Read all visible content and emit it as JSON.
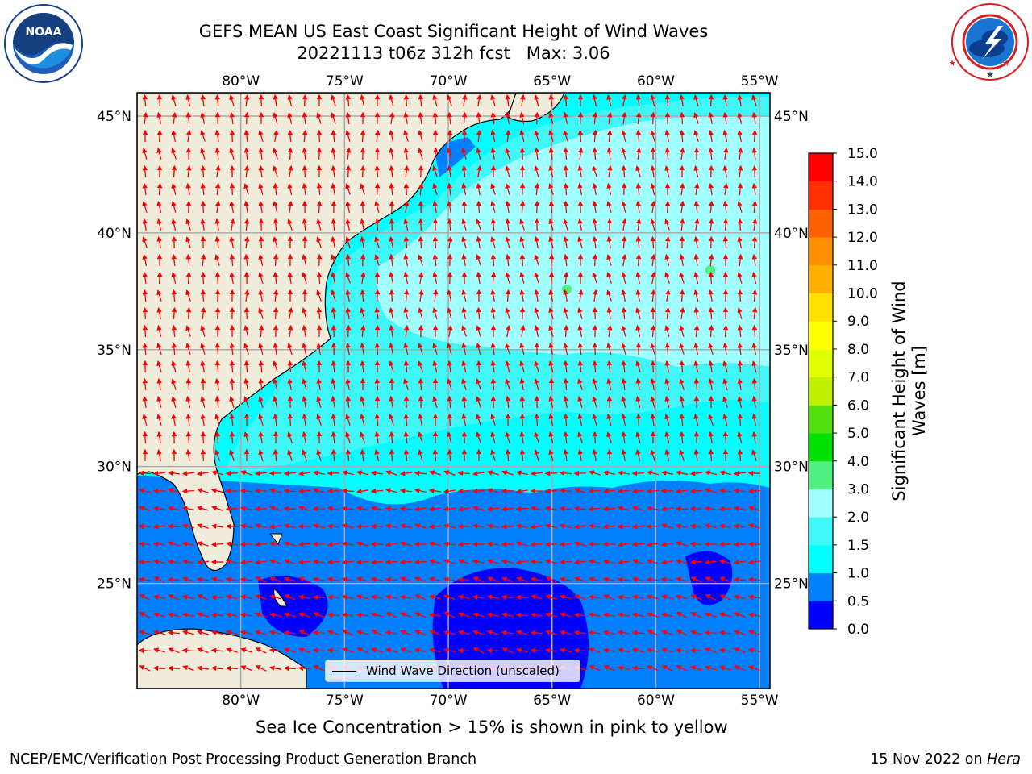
{
  "header": {
    "title_line1": "GEFS MEAN US East Coast Significant Height of Wind Waves",
    "title_line2": "20221113 t06z 312h fcst   Max: 3.06"
  },
  "logos": {
    "left": "noaa-logo",
    "left_text": "NOAA",
    "left_ring_text": "NATIONAL OCEANIC AND ATMOSPHERIC ADMINISTRATION · U.S. DEPARTMENT OF COMMERCE",
    "right": "nws-logo",
    "right_ring_text": "NATIONAL WEATHER SERVICE"
  },
  "map": {
    "lon_labels": [
      "80°W",
      "75°W",
      "70°W",
      "65°W",
      "60°W",
      "55°W"
    ],
    "lat_labels": [
      "45°N",
      "40°N",
      "35°N",
      "30°N",
      "25°N"
    ],
    "lon_values": [
      -80,
      -75,
      -70,
      -65,
      -60,
      -55
    ],
    "lat_values": [
      45,
      40,
      35,
      30,
      25
    ],
    "extent": {
      "lon_min": -85,
      "lon_max": -54.5,
      "lat_min": 20.5,
      "lat_max": 46
    },
    "grid": true,
    "land_color": "#efecdc",
    "vector_color": "#ff0000",
    "legend_label": "Wind Wave Direction (unscaled)"
  },
  "colorbar": {
    "label": "Significant Height of Wind Waves [m]",
    "label_line1": "Significant Height of Wind",
    "label_line2": "Waves [m]",
    "ticks": [
      "15.0",
      "14.0",
      "13.0",
      "12.0",
      "11.0",
      "10.0",
      "9.0",
      "8.0",
      "7.0",
      "6.0",
      "5.0",
      "4.0",
      "3.0",
      "2.0",
      "1.5",
      "1.0",
      "0.5",
      "0.0"
    ],
    "bins": [
      {
        "from": 0.0,
        "to": 0.5,
        "color": "#0000ff"
      },
      {
        "from": 0.5,
        "to": 1.0,
        "color": "#0080ff"
      },
      {
        "from": 1.0,
        "to": 1.5,
        "color": "#00ffff"
      },
      {
        "from": 1.5,
        "to": 2.0,
        "color": "#40f7f7"
      },
      {
        "from": 2.0,
        "to": 3.0,
        "color": "#a0ffff"
      },
      {
        "from": 3.0,
        "to": 4.0,
        "color": "#50f080"
      },
      {
        "from": 4.0,
        "to": 5.0,
        "color": "#00e000"
      },
      {
        "from": 5.0,
        "to": 6.0,
        "color": "#50e010"
      },
      {
        "from": 6.0,
        "to": 7.0,
        "color": "#c0f000"
      },
      {
        "from": 7.0,
        "to": 8.0,
        "color": "#e0ff00"
      },
      {
        "from": 8.0,
        "to": 9.0,
        "color": "#ffff00"
      },
      {
        "from": 9.0,
        "to": 10.0,
        "color": "#ffe000"
      },
      {
        "from": 10.0,
        "to": 11.0,
        "color": "#ffb000"
      },
      {
        "from": 11.0,
        "to": 12.0,
        "color": "#ff9000"
      },
      {
        "from": 12.0,
        "to": 13.0,
        "color": "#ff6000"
      },
      {
        "from": 13.0,
        "to": 14.0,
        "color": "#ff3000"
      },
      {
        "from": 14.0,
        "to": 15.0,
        "color": "#ff0000"
      }
    ]
  },
  "footer": {
    "subtitle": "Sea Ice Concentration > 15% is shown in pink to yellow",
    "left": "NCEP/EMC/Verification Post Processing Product Generation Branch",
    "right_date": "15 Nov 2022 on ",
    "right_machine": "Hera"
  }
}
